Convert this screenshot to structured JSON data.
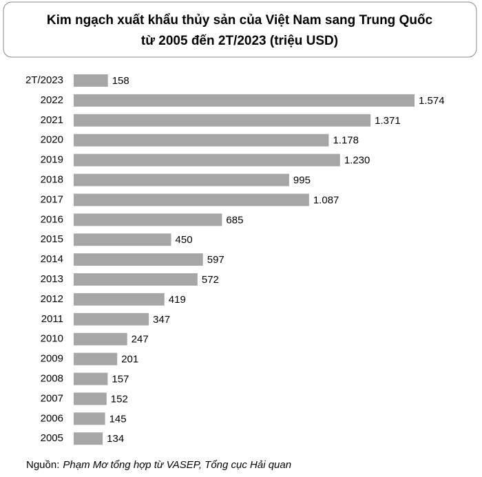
{
  "chart_data": {
    "type": "bar",
    "orientation": "horizontal",
    "title": [
      "Kim ngạch xuất khẩu thủy sản của Việt Nam sang Trung Quốc",
      "từ 2005 đến 2T/2023 (triệu USD)"
    ],
    "categories": [
      "2T/2023",
      "2022",
      "2021",
      "2020",
      "2019",
      "2018",
      "2017",
      "2016",
      "2015",
      "2014",
      "2013",
      "2012",
      "2011",
      "2010",
      "2009",
      "2008",
      "2007",
      "2006",
      "2005"
    ],
    "values": [
      158,
      1574,
      1371,
      1178,
      1230,
      995,
      1087,
      685,
      450,
      597,
      572,
      419,
      347,
      247,
      201,
      157,
      152,
      145,
      134
    ],
    "value_labels": [
      "158",
      "1.574",
      "1.371",
      "1.178",
      "1.230",
      "995",
      "1.087",
      "685",
      "450",
      "597",
      "572",
      "419",
      "347",
      "247",
      "201",
      "157",
      "152",
      "145",
      "134"
    ],
    "color": "#a6a6a6",
    "source_label": "Nguồn:",
    "source": "Phạm Mơ tổng hợp từ VASEP, Tổng cục Hải quan"
  }
}
